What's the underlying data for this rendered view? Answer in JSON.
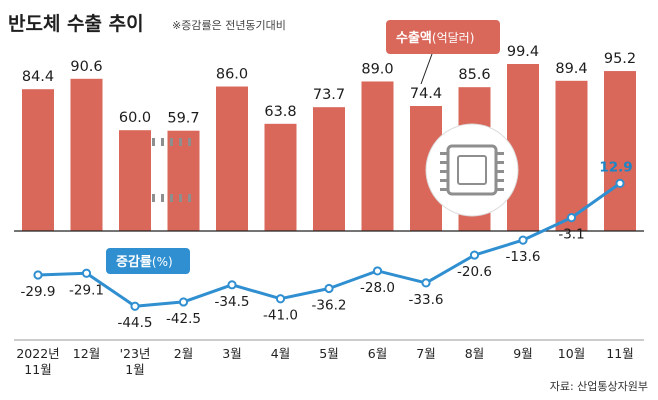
{
  "title": "반도체 수출 추이",
  "subtitle": "※증감률은 전년동기대비",
  "source": "자료: 산업통상자원부",
  "colors": {
    "bar": "#d9675a",
    "line": "#2f8fd0",
    "marker_fill": "#ffffff",
    "baseline": "#222222"
  },
  "legend": {
    "bar_label": "수출액",
    "bar_unit": "(억달러)",
    "line_label": "증감률",
    "line_unit": "(%)"
  },
  "icon": "microchip-icon",
  "chart_data": [
    {
      "type": "bar",
      "categories": [
        "2022년 11월",
        "12월",
        "'23년 1월",
        "2월",
        "3월",
        "4월",
        "5월",
        "6월",
        "7월",
        "8월",
        "9월",
        "10월",
        "11월"
      ],
      "tick_labels": [
        [
          "2022년",
          "11월"
        ],
        [
          "12월"
        ],
        [
          "'23년",
          "1월"
        ],
        [
          "2월"
        ],
        [
          "3월"
        ],
        [
          "4월"
        ],
        [
          "5월"
        ],
        [
          "6월"
        ],
        [
          "7월"
        ],
        [
          "8월"
        ],
        [
          "9월"
        ],
        [
          "10월"
        ],
        [
          "11월"
        ]
      ],
      "series": [
        {
          "name": "수출액(억달러)",
          "values": [
            84.4,
            90.6,
            60.0,
            59.7,
            86.0,
            63.8,
            73.7,
            89.0,
            74.4,
            85.6,
            99.4,
            89.4,
            95.2
          ],
          "labels": [
            "84.4",
            "90.6",
            "60.0",
            "59.7",
            "86.0",
            "63.8",
            "73.7",
            "89.0",
            "74.4",
            "85.6",
            "99.4",
            "89.4",
            "95.2"
          ]
        }
      ],
      "ylim": [
        0,
        100
      ]
    },
    {
      "type": "line",
      "categories": [
        "2022년 11월",
        "12월",
        "'23년 1월",
        "2월",
        "3월",
        "4월",
        "5월",
        "6월",
        "7월",
        "8월",
        "9월",
        "10월",
        "11월"
      ],
      "series": [
        {
          "name": "증감률(%)",
          "values": [
            -29.9,
            -29.1,
            -44.5,
            -42.5,
            -34.5,
            -41.0,
            -36.2,
            -28.0,
            -33.6,
            -20.6,
            -13.6,
            -3.1,
            12.9
          ],
          "labels": [
            "-29.9",
            "-29.1",
            "-44.5",
            "-42.5",
            "-34.5",
            "-41.0",
            "-36.2",
            "-28.0",
            "-33.6",
            "-20.6",
            "-13.6",
            "-3.1",
            "12.9"
          ]
        }
      ]
    }
  ]
}
